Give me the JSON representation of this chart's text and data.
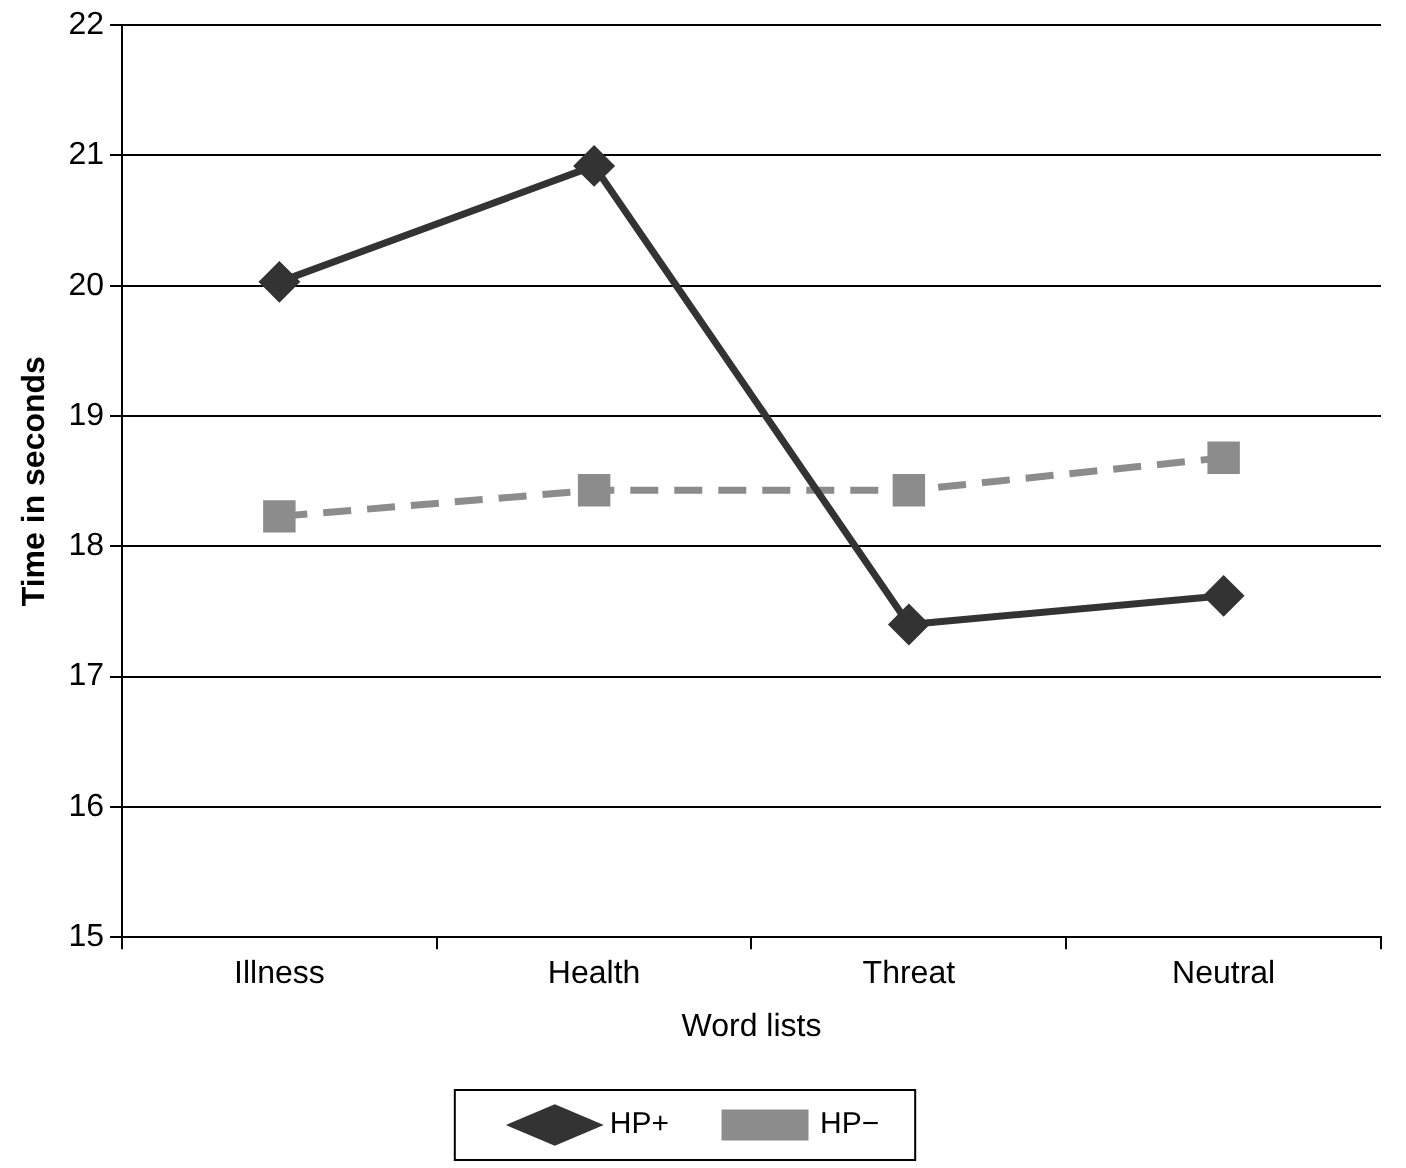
{
  "chart_data": {
    "type": "line",
    "xlabel": "Word lists",
    "ylabel": "Time in seconds",
    "categories": [
      "Illness",
      "Health",
      "Threat",
      "Neutral"
    ],
    "series": [
      {
        "name": "HP+",
        "color": "#333333",
        "values": [
          20.03,
          20.92,
          17.4,
          17.62
        ],
        "marker": "diamond",
        "line_style": "solid"
      },
      {
        "name": "HP−",
        "color": "#8c8c8c",
        "values": [
          18.23,
          18.43,
          18.43,
          18.68
        ],
        "marker": "square",
        "line_style": "dashed"
      }
    ],
    "ylim": [
      15,
      22
    ],
    "yticks": [
      15,
      16,
      17,
      18,
      19,
      20,
      21,
      22
    ],
    "grid": "y",
    "legend": "bottom"
  }
}
